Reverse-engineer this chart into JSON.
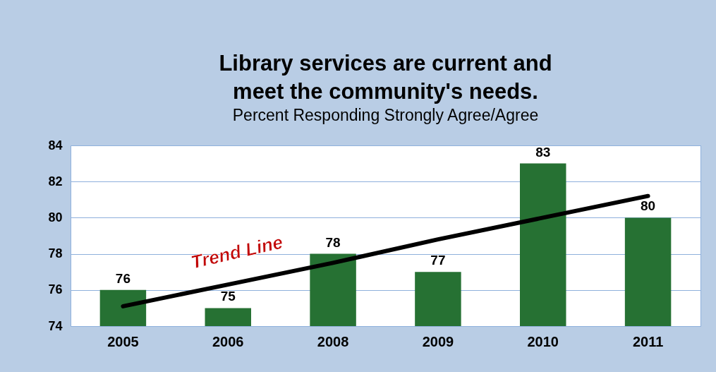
{
  "chart_data": {
    "type": "bar",
    "title": "Library services are current and meet the community's needs.",
    "subtitle": "Percent Responding Strongly Agree/Agree",
    "categories": [
      "2005",
      "2006",
      "2008",
      "2009",
      "2010",
      "2011"
    ],
    "series": [
      {
        "color": "#267133",
        "values": [
          76,
          75,
          78,
          77,
          83,
          80
        ],
        "value_labels": [
          "76",
          "75",
          "78",
          "77",
          "83",
          "80"
        ]
      },
      {
        "type": "line",
        "color": "#000000",
        "values": [
          75.1,
          76.3,
          77.5,
          78.8,
          80.0,
          81.2
        ]
      }
    ],
    "ylim": [
      74,
      84
    ],
    "yticks": [
      74,
      76,
      78,
      80,
      82,
      84
    ],
    "grid": "y",
    "legend": false,
    "annotations": [
      "Trend Line"
    ]
  }
}
